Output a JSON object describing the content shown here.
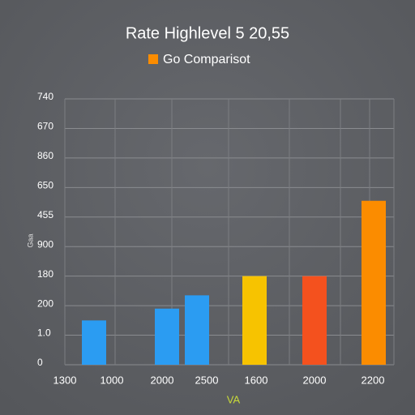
{
  "chart_data": {
    "type": "bar",
    "title": "Rate Highlevel 5 20,55",
    "x_label": "VA",
    "y_label": "Gaa",
    "categories": [
      "1300",
      "1000",
      "2000",
      "2500",
      "1600",
      "2000",
      "2200"
    ],
    "series": [
      {
        "name": "Go Comparisot",
        "color": "#fb8c00",
        "values": [
          null,
          1.5,
          1.9,
          2.35,
          3.0,
          3.0,
          5.55
        ],
        "colors": [
          null,
          "#2b9cf2",
          "#2b9cf2",
          "#2b9cf2",
          "#f7c300",
          "#f4511e",
          "#fb8c00"
        ]
      }
    ],
    "ylim": [
      0,
      9
    ],
    "yticks": [
      {
        "value": 0,
        "label": "0"
      },
      {
        "value": 1,
        "label": "1.0"
      },
      {
        "value": 2,
        "label": "200"
      },
      {
        "value": 3,
        "label": "180"
      },
      {
        "value": 4,
        "label": "900"
      },
      {
        "value": 5,
        "label": "455"
      },
      {
        "value": 6,
        "label": "650"
      },
      {
        "value": 7,
        "label": "860"
      },
      {
        "value": 8,
        "label": "670"
      },
      {
        "value": 9,
        "label": "740"
      }
    ],
    "grid": true,
    "legend": "top"
  }
}
